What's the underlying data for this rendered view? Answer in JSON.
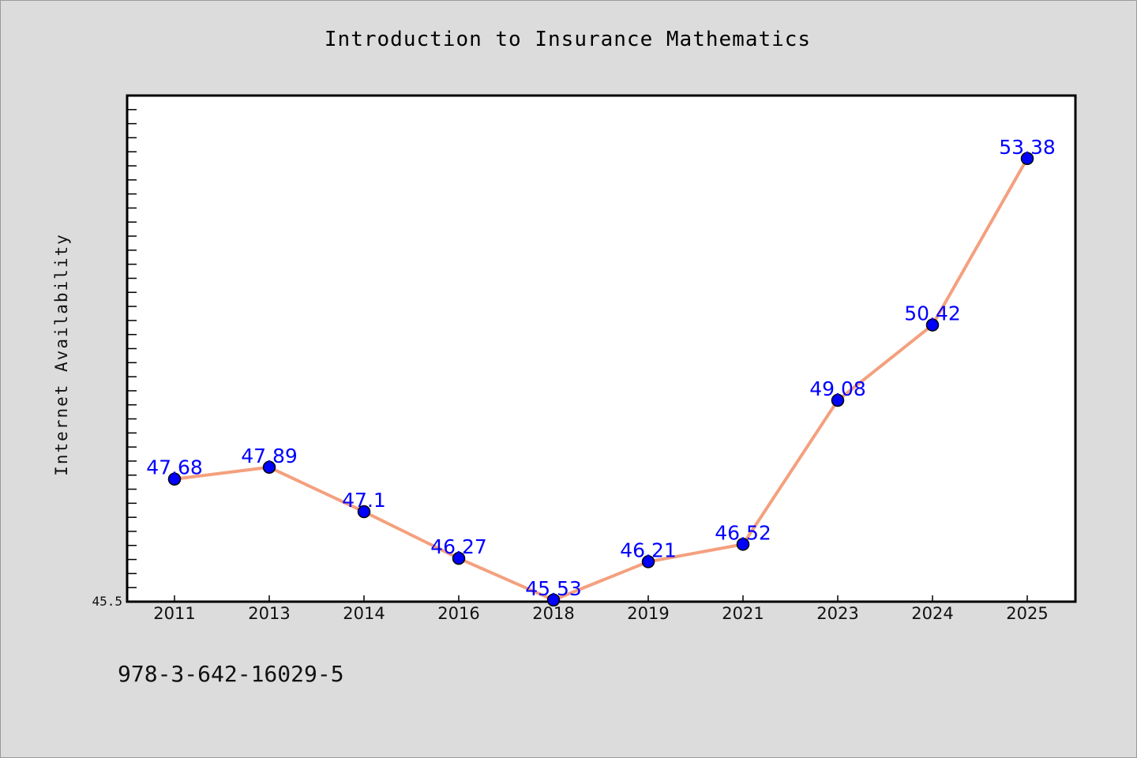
{
  "chart_data": {
    "type": "line",
    "title": "Introduction to Insurance Mathematics",
    "xlabel": "",
    "ylabel": "Internet Availability",
    "categories": [
      "2011",
      "2013",
      "2014",
      "2016",
      "2018",
      "2019",
      "2021",
      "2023",
      "2024",
      "2025"
    ],
    "series": [
      {
        "values": [
          47.68,
          47.89,
          47.1,
          46.27,
          45.53,
          46.21,
          46.52,
          49.08,
          50.42,
          53.38
        ],
        "labels": [
          "47.68",
          "47.89",
          "47.1",
          "46.27",
          "45.53",
          "46.21",
          "46.52",
          "49.08",
          "50.42",
          "53.38"
        ]
      }
    ],
    "ylim": [
      45.5,
      54.5
    ],
    "ytick_label": "45.5",
    "grid": false,
    "legend": "none",
    "colors": {
      "line": "#f4a07e",
      "marker": "#0000ff",
      "label": "#0000ff",
      "plot_bg": "#ffffff",
      "page_bg": "#dcdcdc"
    }
  },
  "footnote": "978-3-642-16029-5"
}
